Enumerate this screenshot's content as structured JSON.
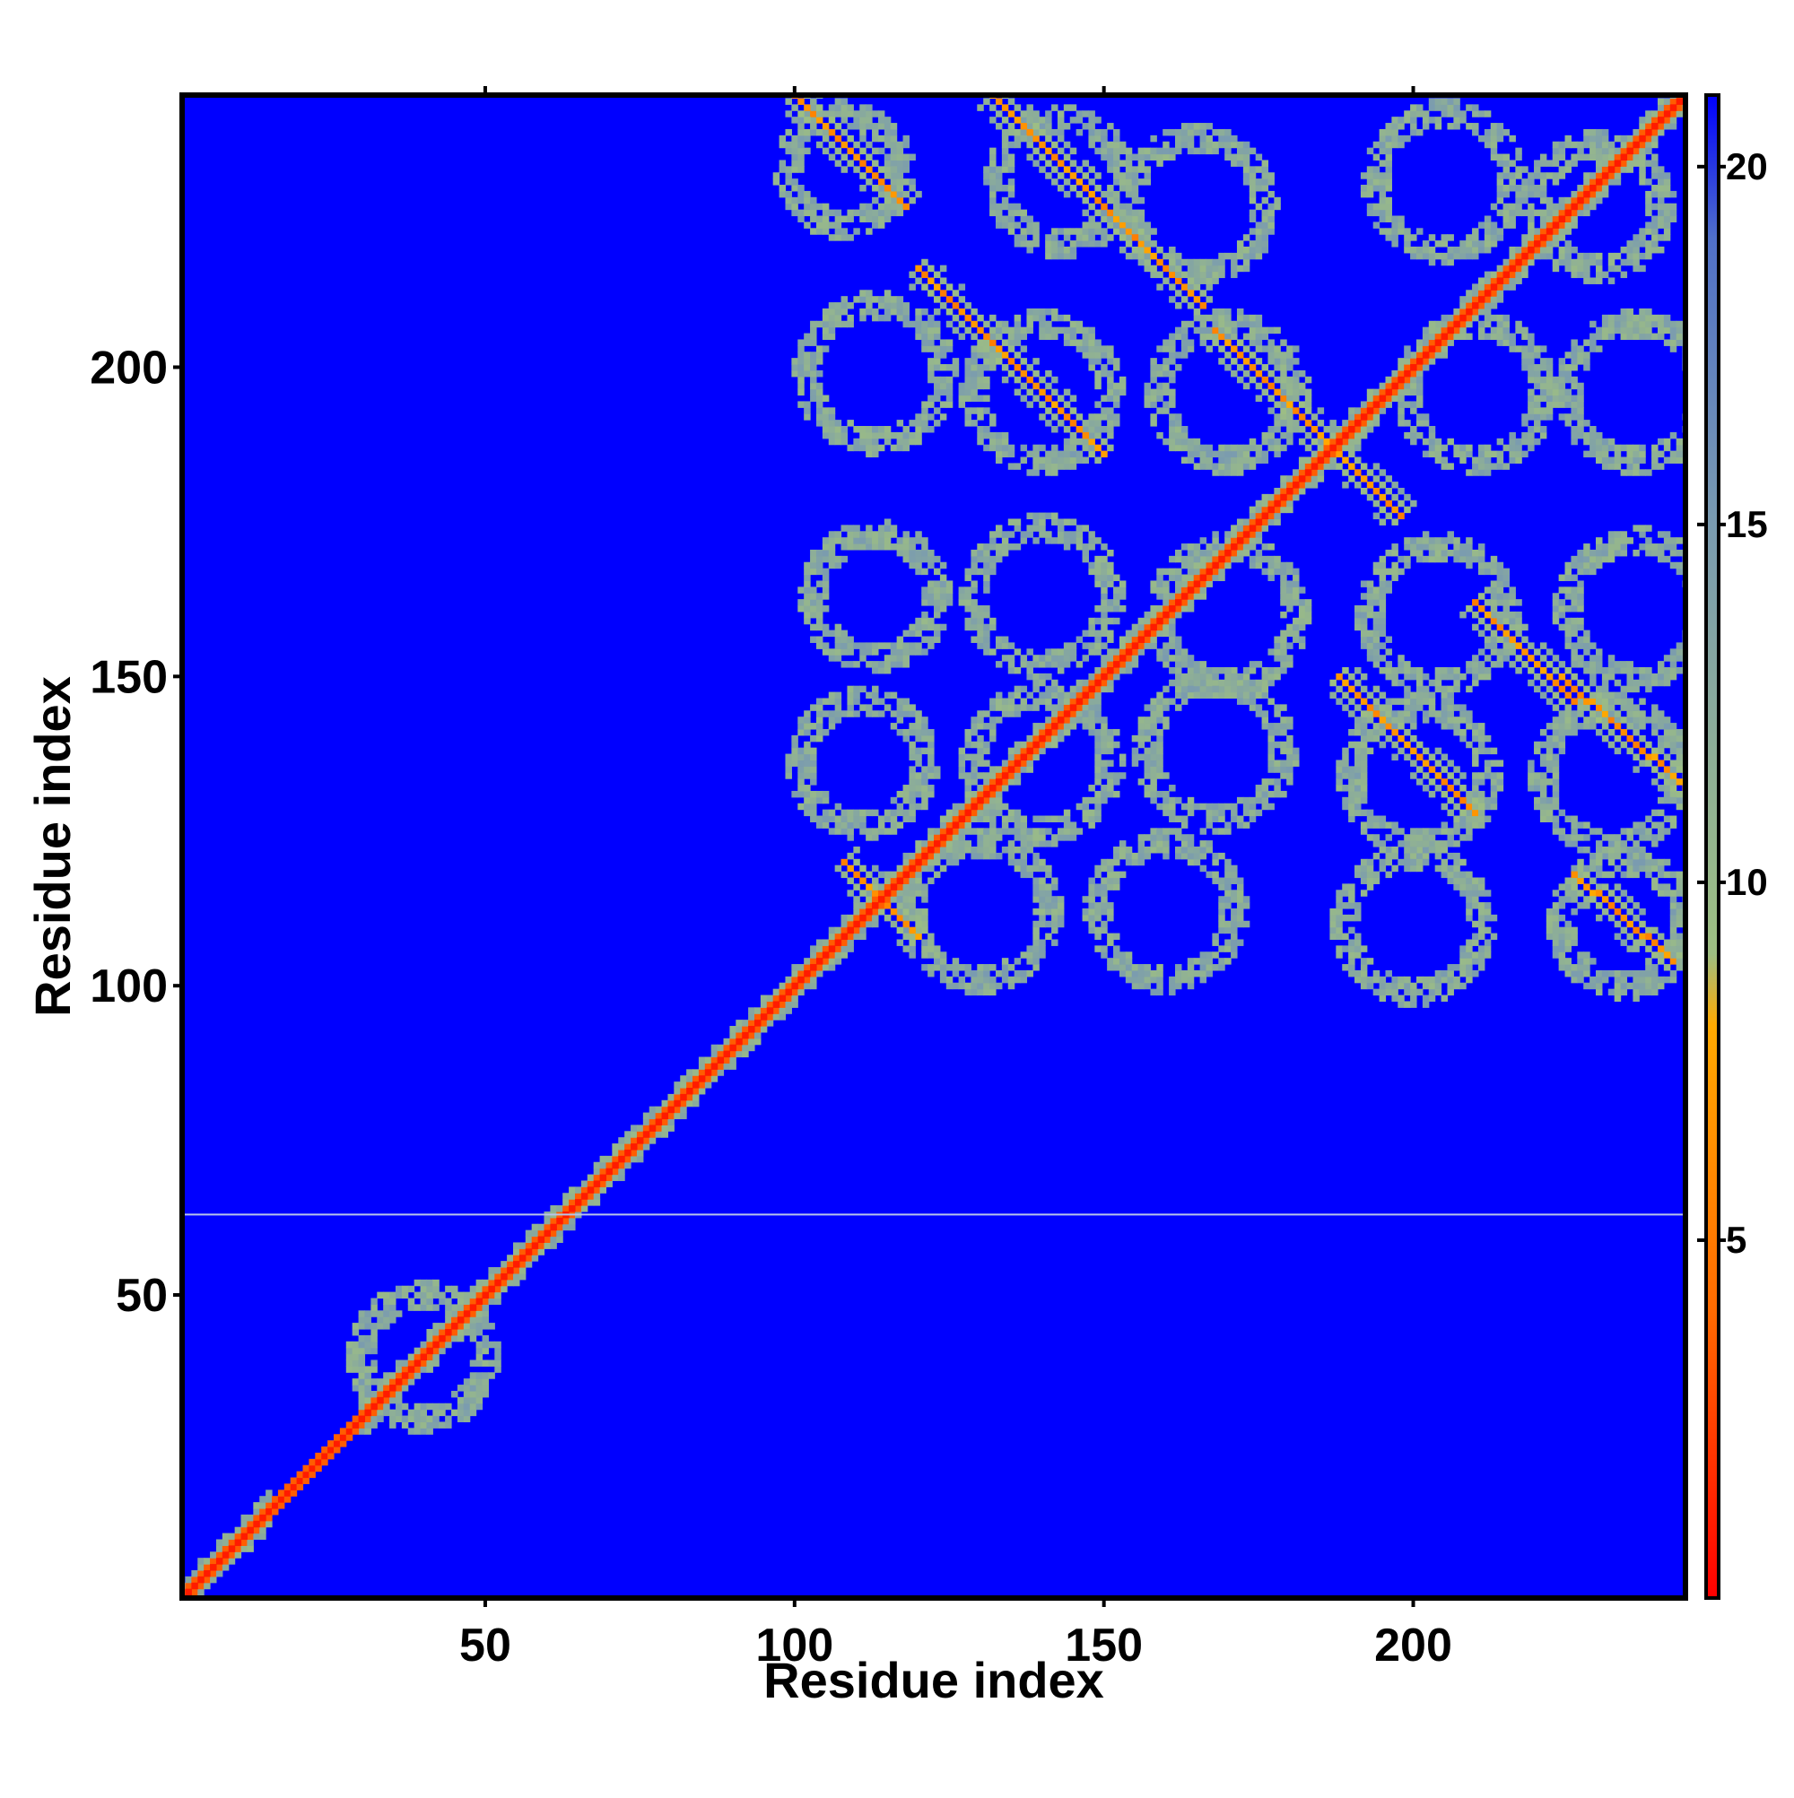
{
  "chart_data": {
    "type": "heatmap",
    "title": "",
    "xlabel": "Residue index",
    "ylabel": "Residue index",
    "xlim": [
      1,
      244
    ],
    "ylim": [
      1,
      244
    ],
    "x_ticks": [
      50,
      100,
      150,
      200
    ],
    "y_ticks": [
      50,
      100,
      150,
      200
    ],
    "colorbar": {
      "min": 0,
      "max": 21,
      "ticks": [
        5,
        10,
        15,
        20
      ],
      "colors": [
        "#ff0000",
        "#ff6a00",
        "#ffaa00",
        "#9ebf82",
        "#7a9bb0",
        "#5070c8",
        "#0000ff"
      ],
      "stops": [
        0,
        4,
        8,
        9,
        15,
        19,
        21
      ]
    },
    "value_range_shown": "contact distance map, background value >= 21",
    "features": {
      "main_diagonal": {
        "from": 1,
        "to": 244,
        "value": 1
      },
      "diagonal_halo_ranges": [
        [
          1,
          15
        ],
        [
          30,
          55
        ],
        [
          55,
          100
        ],
        [
          100,
          244
        ]
      ],
      "anti_diagonal_bands": [
        {
          "x": [
            100,
            118
          ],
          "y": [
            244,
            226
          ]
        },
        {
          "x": [
            132,
            150
          ],
          "y": [
            244,
            226
          ]
        },
        {
          "x": [
            120,
            150
          ],
          "y": [
            216,
            186
          ]
        },
        {
          "x": [
            150,
            166
          ],
          "y": [
            226,
            210
          ]
        },
        {
          "x": [
            168,
            198
          ],
          "y": [
            206,
            176
          ]
        },
        {
          "x": [
            188,
            210
          ],
          "y": [
            150,
            128
          ]
        },
        {
          "x": [
            210,
            226
          ],
          "y": [
            162,
            146
          ]
        },
        {
          "x": [
            224,
            244
          ],
          "y": [
            150,
            132
          ]
        },
        {
          "x": [
            226,
            242
          ],
          "y": [
            118,
            104
          ]
        },
        {
          "x": [
            108,
            120
          ],
          "y": [
            120,
            108
          ]
        }
      ],
      "ring_clusters": [
        {
          "cx": 108,
          "cy": 232,
          "r": 9
        },
        {
          "cx": 143,
          "cy": 230,
          "r": 10
        },
        {
          "cx": 165,
          "cy": 226,
          "r": 11
        },
        {
          "cx": 205,
          "cy": 230,
          "r": 11
        },
        {
          "cx": 230,
          "cy": 226,
          "r": 10
        },
        {
          "cx": 113,
          "cy": 199,
          "r": 11
        },
        {
          "cx": 140,
          "cy": 196,
          "r": 11
        },
        {
          "cx": 170,
          "cy": 196,
          "r": 11
        },
        {
          "cx": 210,
          "cy": 196,
          "r": 11
        },
        {
          "cx": 236,
          "cy": 196,
          "r": 11
        },
        {
          "cx": 113,
          "cy": 163,
          "r": 10
        },
        {
          "cx": 140,
          "cy": 163,
          "r": 11
        },
        {
          "cx": 170,
          "cy": 160,
          "r": 11
        },
        {
          "cx": 204,
          "cy": 160,
          "r": 11
        },
        {
          "cx": 236,
          "cy": 161,
          "r": 11
        },
        {
          "cx": 111,
          "cy": 136,
          "r": 10
        },
        {
          "cx": 140,
          "cy": 136,
          "r": 11
        },
        {
          "cx": 168,
          "cy": 138,
          "r": 11
        },
        {
          "cx": 201,
          "cy": 134,
          "r": 11
        },
        {
          "cx": 232,
          "cy": 134,
          "r": 11
        },
        {
          "cx": 130,
          "cy": 112,
          "r": 11
        },
        {
          "cx": 160,
          "cy": 112,
          "r": 11
        },
        {
          "cx": 200,
          "cy": 110,
          "r": 11
        },
        {
          "cx": 234,
          "cy": 110,
          "r": 10
        },
        {
          "cx": 40,
          "cy": 40,
          "r": 10
        }
      ],
      "horizontal_line_y": 63
    }
  }
}
